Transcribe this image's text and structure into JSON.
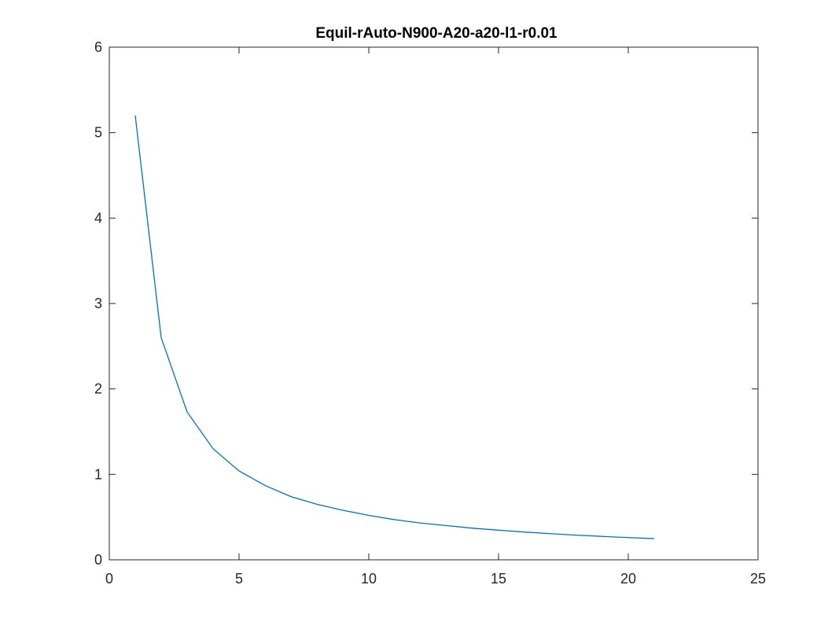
{
  "chart_data": {
    "type": "line",
    "title": "Equil-rAuto-N900-A20-a20-l1-r0.01",
    "xlabel": "",
    "ylabel": "",
    "xlim": [
      0,
      25
    ],
    "ylim": [
      0,
      6
    ],
    "xticks": [
      0,
      5,
      10,
      15,
      20,
      25
    ],
    "yticks": [
      0,
      1,
      2,
      3,
      4,
      5,
      6
    ],
    "xtick_labels": [
      "0",
      "5",
      "10",
      "15",
      "20",
      "25"
    ],
    "ytick_labels": [
      "0",
      "1",
      "2",
      "3",
      "4",
      "5",
      "6"
    ],
    "grid": false,
    "legend": "none",
    "series": [
      {
        "color": "#0072bd",
        "x": [
          1,
          2,
          3,
          4,
          5,
          6,
          7,
          8,
          9,
          10,
          11,
          12,
          13,
          14,
          15,
          16,
          17,
          18,
          19,
          20,
          21
        ],
        "y": [
          5.2,
          2.6,
          1.73,
          1.3,
          1.04,
          0.87,
          0.74,
          0.65,
          0.58,
          0.52,
          0.47,
          0.43,
          0.4,
          0.37,
          0.347,
          0.325,
          0.306,
          0.289,
          0.274,
          0.26,
          0.248
        ]
      }
    ]
  }
}
